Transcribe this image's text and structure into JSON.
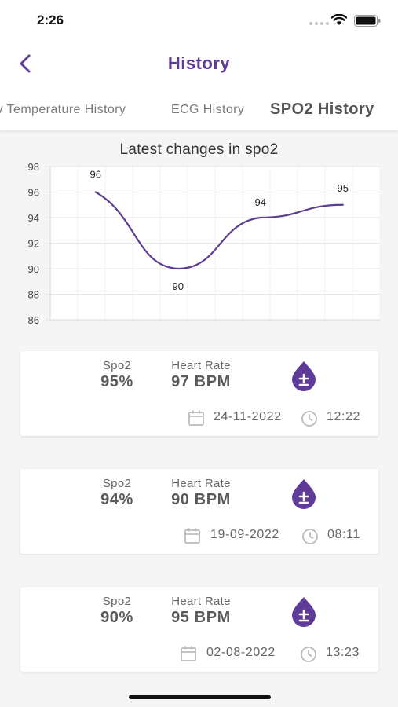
{
  "status_bar": {
    "time": "2:26"
  },
  "header": {
    "title": "History",
    "back_icon": "chevron-left-icon"
  },
  "tabs": [
    {
      "label": "Body Temperature History",
      "active": false
    },
    {
      "label": "ECG History",
      "active": false
    },
    {
      "label": "SPO2 History",
      "active": true
    }
  ],
  "colors": {
    "accent": "#5e3b98",
    "line": "#5b3d93"
  },
  "chart_data": {
    "type": "line",
    "title": "Latest changes in spo2",
    "x": [
      1,
      2,
      3,
      4
    ],
    "series": [
      {
        "values": [
          96,
          90,
          94,
          95
        ]
      }
    ],
    "data_labels": [
      "96",
      "90",
      "94",
      "95"
    ],
    "ylim": [
      86,
      98
    ],
    "yticks": [
      "98",
      "96",
      "94",
      "92",
      "90",
      "88",
      "86"
    ],
    "grid": true,
    "smooth": true
  },
  "records": [
    {
      "spo2_label": "Spo2",
      "spo2_value": "95%",
      "hr_label": "Heart Rate",
      "hr_value": "97 BPM",
      "date": "24-11-2022",
      "time": "12:22",
      "icon": "blood-drop-plus-minus-icon"
    },
    {
      "spo2_label": "Spo2",
      "spo2_value": "94%",
      "hr_label": "Heart Rate",
      "hr_value": "90 BPM",
      "date": "19-09-2022",
      "time": "08:11",
      "icon": "blood-drop-plus-minus-icon"
    },
    {
      "spo2_label": "Spo2",
      "spo2_value": "90%",
      "hr_label": "Heart Rate",
      "hr_value": "95 BPM",
      "date": "02-08-2022",
      "time": "13:23",
      "icon": "blood-drop-plus-minus-icon"
    }
  ]
}
